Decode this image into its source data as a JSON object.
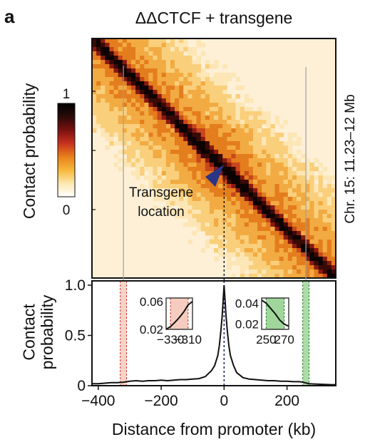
{
  "panel_label": "a",
  "title": "ΔΔCTCF + transgene",
  "colorbar": {
    "label": "Contact probability",
    "max_label": "1",
    "min_label": "0",
    "stops": [
      "#ffffff",
      "#fde8b0",
      "#f6b83a",
      "#e8801a",
      "#c8321e",
      "#7a1010",
      "#2a0b08",
      "#000000"
    ]
  },
  "heatmap": {
    "side_label": "Chr. 15: 11.23–12 Mb",
    "annotation": [
      "Transgene",
      "location"
    ],
    "arrow_color": "#2a3585"
  },
  "chart_data": {
    "type": "line",
    "title": "",
    "xlabel": "Distance from promoter (kb)",
    "ylabel": "Contact probability",
    "xlim": [
      -420,
      355
    ],
    "ylim": [
      0,
      1.0
    ],
    "xticks": [
      -400,
      -200,
      0,
      200
    ],
    "xtick_labels": [
      "−400",
      "−200",
      "0",
      "200"
    ],
    "yticks": [
      0,
      0.5,
      1.0
    ],
    "ytick_labels": [
      "0",
      "0.5",
      "1.0"
    ],
    "series": [
      {
        "x": [
          -420,
          -400,
          -380,
          -360,
          -340,
          -320,
          -300,
          -280,
          -260,
          -240,
          -220,
          -200,
          -180,
          -160,
          -140,
          -120,
          -100,
          -80,
          -60,
          -40,
          -30,
          -20,
          -15,
          -10,
          -6,
          -3,
          0,
          3,
          6,
          10,
          15,
          20,
          30,
          40,
          60,
          80,
          100,
          120,
          140,
          160,
          180,
          200,
          220,
          240,
          250,
          260,
          270,
          280,
          300,
          320,
          340,
          355
        ],
        "y": [
          0.02,
          0.02,
          0.025,
          0.03,
          0.03,
          0.035,
          0.045,
          0.05,
          0.045,
          0.05,
          0.05,
          0.055,
          0.05,
          0.055,
          0.06,
          0.06,
          0.065,
          0.07,
          0.09,
          0.15,
          0.2,
          0.3,
          0.4,
          0.55,
          0.7,
          0.85,
          1.0,
          0.85,
          0.7,
          0.55,
          0.4,
          0.3,
          0.2,
          0.13,
          0.08,
          0.065,
          0.06,
          0.055,
          0.05,
          0.05,
          0.045,
          0.045,
          0.04,
          0.04,
          0.035,
          0.028,
          0.02,
          0.018,
          0.015,
          0.012,
          0.01,
          0.01
        ]
      }
    ],
    "highlights": [
      {
        "x0": -330,
        "x1": -310,
        "color": "#f4c3b5",
        "edge": "#c0392b"
      },
      {
        "x0": 250,
        "x1": 270,
        "color": "#8fcf8a",
        "edge": "#2e7d32"
      }
    ],
    "markers": [
      {
        "x": 0,
        "color": "#1f2a6b"
      }
    ],
    "insets": [
      {
        "xlim": [
          -335,
          -305
        ],
        "ylim": [
          0.02,
          0.065
        ],
        "xtick_labels": [
          "−330",
          "−310"
        ],
        "xticks": [
          -330,
          -310
        ],
        "ytick_labels": [
          "0.06",
          "0.02"
        ],
        "yticks": [
          0.06,
          0.02
        ],
        "x": [
          -335,
          -330,
          -325,
          -320,
          -315,
          -310,
          -305
        ],
        "y": [
          0.02,
          0.024,
          0.03,
          0.037,
          0.045,
          0.055,
          0.06
        ]
      },
      {
        "xlim": [
          245,
          275
        ],
        "ylim": [
          0.015,
          0.045
        ],
        "xtick_labels": [
          "250",
          "270"
        ],
        "xticks": [
          250,
          270
        ],
        "ytick_labels": [
          "0.04",
          "0.02"
        ],
        "yticks": [
          0.04,
          0.02
        ],
        "x": [
          245,
          250,
          255,
          260,
          265,
          270,
          275
        ],
        "y": [
          0.043,
          0.04,
          0.035,
          0.03,
          0.024,
          0.02,
          0.018
        ]
      }
    ]
  }
}
